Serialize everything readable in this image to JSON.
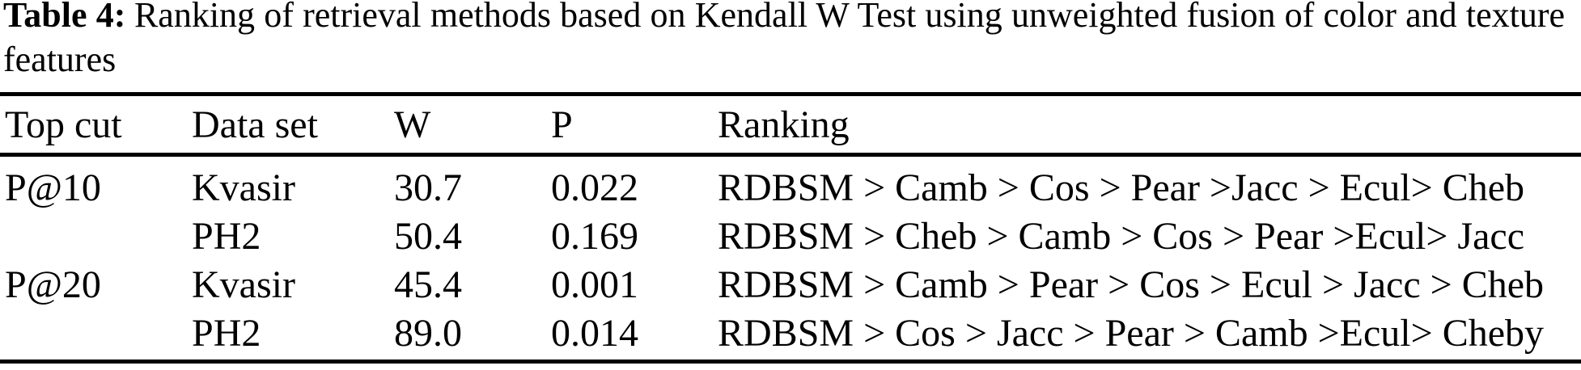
{
  "colors": {
    "background": "#ffffff",
    "text": "#000000",
    "rule": "#000000"
  },
  "caption": {
    "label": "Table 4:",
    "text": "Ranking of retrieval methods based on Kendall W Test using unweighted fusion of color and texture features"
  },
  "table": {
    "columns": [
      "Top cut",
      "Data set",
      "W",
      "P",
      "Ranking"
    ],
    "rows": [
      {
        "top_cut": "P@10",
        "data_set": "Kvasir",
        "w": "30.7",
        "p": "0.022",
        "ranking": "RDBSM > Camb > Cos > Pear >Jacc > Ecul> Cheb"
      },
      {
        "top_cut": "",
        "data_set": "PH2",
        "w": "50.4",
        "p": "0.169",
        "ranking": "RDBSM > Cheb > Camb > Cos > Pear >Ecul> Jacc"
      },
      {
        "top_cut": "P@20",
        "data_set": "Kvasir",
        "w": "45.4",
        "p": "0.001",
        "ranking": "RDBSM > Camb > Pear > Cos > Ecul > Jacc > Cheb"
      },
      {
        "top_cut": "",
        "data_set": "PH2",
        "w": "89.0",
        "p": "0.014",
        "ranking": "RDBSM > Cos > Jacc > Pear > Camb >Ecul> Cheby"
      }
    ]
  }
}
